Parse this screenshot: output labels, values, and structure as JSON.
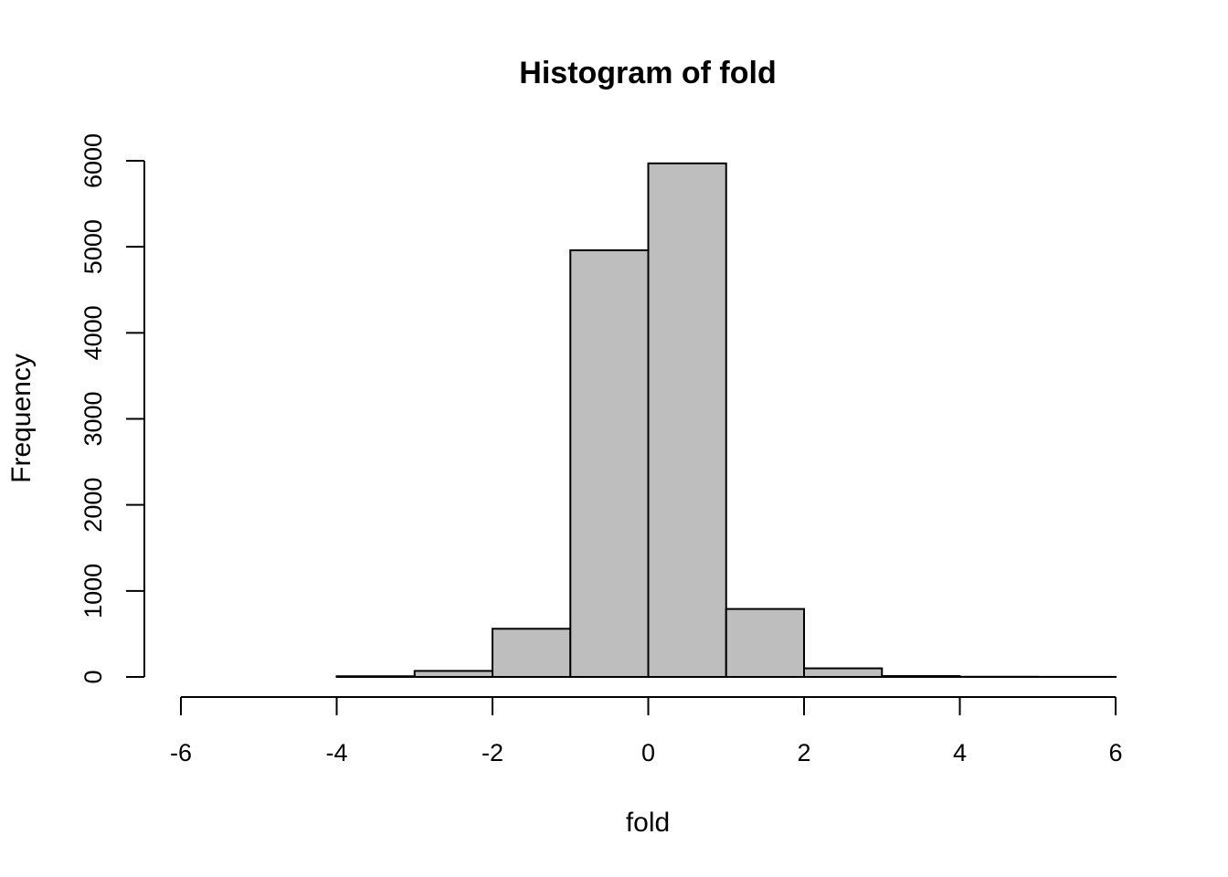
{
  "chart_data": {
    "type": "bar",
    "title": "Histogram of fold",
    "xlabel": "fold",
    "ylabel": "Frequency",
    "bins": [
      {
        "from": -6,
        "to": -5,
        "count": 0
      },
      {
        "from": -5,
        "to": -4,
        "count": 0
      },
      {
        "from": -4,
        "to": -3,
        "count": 8
      },
      {
        "from": -3,
        "to": -2,
        "count": 70
      },
      {
        "from": -2,
        "to": -1,
        "count": 560
      },
      {
        "from": -1,
        "to": 0,
        "count": 4960
      },
      {
        "from": 0,
        "to": 1,
        "count": 5970
      },
      {
        "from": 1,
        "to": 2,
        "count": 790
      },
      {
        "from": 2,
        "to": 3,
        "count": 100
      },
      {
        "from": 3,
        "to": 4,
        "count": 10
      },
      {
        "from": 4,
        "to": 5,
        "count": 2
      },
      {
        "from": 5,
        "to": 6,
        "count": 1
      }
    ],
    "xlim": [
      -6,
      6
    ],
    "ylim": [
      0,
      6000
    ],
    "x_ticks": [
      -6,
      -4,
      -2,
      0,
      2,
      4,
      6
    ],
    "y_ticks": [
      0,
      1000,
      2000,
      3000,
      4000,
      5000,
      6000
    ],
    "colors": {
      "bar_fill": "#bebebe",
      "bar_stroke": "#000000"
    },
    "grid": false
  }
}
